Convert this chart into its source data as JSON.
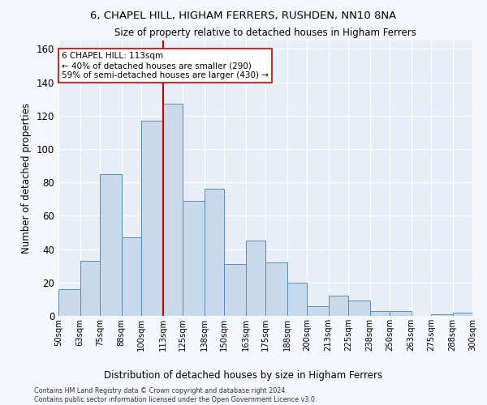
{
  "title": "6, CHAPEL HILL, HIGHAM FERRERS, RUSHDEN, NN10 8NA",
  "subtitle": "Size of property relative to detached houses in Higham Ferrers",
  "xlabel": "Distribution of detached houses by size in Higham Ferrers",
  "ylabel": "Number of detached properties",
  "bar_color": "#c9d9ec",
  "bar_edge_color": "#5b8db8",
  "background_color": "#e8eef8",
  "grid_color": "#ffffff",
  "annotation_line_color": "#cc0000",
  "annotation_text_line1": "6 CHAPEL HILL: 113sqm",
  "annotation_text_line2": "← 40% of detached houses are smaller (290)",
  "annotation_text_line3": "59% of semi-detached houses are larger (430) →",
  "annotation_box_color": "#ffffff",
  "annotation_box_edge_color": "#cc0000",
  "footer_line1": "Contains HM Land Registry data © Crown copyright and database right 2024.",
  "footer_line2": "Contains public sector information licensed under the Open Government Licence v3.0.",
  "bins": [
    50,
    63,
    75,
    88,
    100,
    113,
    125,
    138,
    150,
    163,
    175,
    188,
    200,
    213,
    225,
    238,
    250,
    263,
    275,
    288,
    300
  ],
  "counts": [
    16,
    33,
    85,
    47,
    117,
    127,
    69,
    76,
    31,
    45,
    32,
    20,
    6,
    12,
    9,
    3,
    3,
    0,
    1,
    2
  ],
  "ylim": [
    0,
    165
  ],
  "yticks": [
    0,
    20,
    40,
    60,
    80,
    100,
    120,
    140,
    160
  ]
}
